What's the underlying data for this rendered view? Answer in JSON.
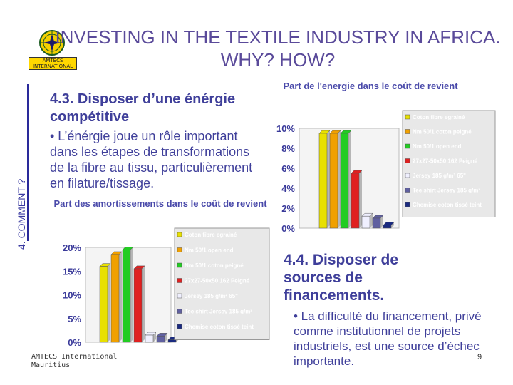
{
  "slide": {
    "title": "INVESTING IN THE TEXTILE INDUSTRY IN AFRICA. WHY? HOW?",
    "logo_text": "AMTECS INTERNATIONAL",
    "side_label": "4. COMMENT ?",
    "section_43_title": "4.3. Disposer d’une énérgie compétitive",
    "section_43_text": "• L’énérgie joue un rôle important dans les étapes de transformations de la fibre au tissu, particulièrement en filature/tissage.",
    "section_44_title": "4.4. Disposer de sources de financements.",
    "section_44_text": "• La difficulté du financement, privé comme institutionnel de projets industriels, est une source d’échec importante.",
    "footer": "AMTECS International\nMauritius",
    "page_number": "9"
  },
  "chart_data": [
    {
      "type": "bar",
      "title": "Part de l'energie dans le coût de revient",
      "yticks": [
        "0%",
        "2%",
        "4%",
        "6%",
        "8%",
        "10%"
      ],
      "ylim": [
        0,
        10
      ],
      "series": [
        {
          "name": "Coton fibre egrainé",
          "value": 9.5,
          "color": "#e8e000"
        },
        {
          "name": "Nm 50/1 coton peigné",
          "value": 9.5,
          "color": "#f0a000"
        },
        {
          "name": "Nm 50/1 open end",
          "value": 9.5,
          "color": "#22cc22"
        },
        {
          "name": "27x27-50x50 162 Peigné",
          "value": 5.5,
          "color": "#e02020"
        },
        {
          "name": "Jersey 185 g/m² 65\"",
          "value": 1.2,
          "color": "#f0f0ff"
        },
        {
          "name": "Tee shirt Jersey 185 g/m²",
          "value": 1.0,
          "color": "#6060a0"
        },
        {
          "name": "Chemise coton tissé teint",
          "value": 0.3,
          "color": "#1a2a80"
        }
      ]
    },
    {
      "type": "bar",
      "title": "Part des amortissements dans le coût de revient",
      "yticks": [
        "0%",
        "5%",
        "10%",
        "15%",
        "20%"
      ],
      "ylim": [
        0,
        20
      ],
      "series": [
        {
          "name": "Coton fibre egrainé",
          "value": 16.0,
          "color": "#e8e000"
        },
        {
          "name": "Nm 50/1 open end",
          "value": 18.5,
          "color": "#f0a000"
        },
        {
          "name": "Nm 50/1 coton peigné",
          "value": 19.5,
          "color": "#22cc22"
        },
        {
          "name": "27x27-50x50 162 Peigné",
          "value": 15.5,
          "color": "#e02020"
        },
        {
          "name": "Jersey 185 g/m² 65\"",
          "value": 1.5,
          "color": "#f0f0ff"
        },
        {
          "name": "Tee shirt Jersey 185 g/m²",
          "value": 1.3,
          "color": "#6060a0"
        },
        {
          "name": "Chemise coton tissé teint",
          "value": 0.5,
          "color": "#1a2a80"
        }
      ]
    }
  ]
}
